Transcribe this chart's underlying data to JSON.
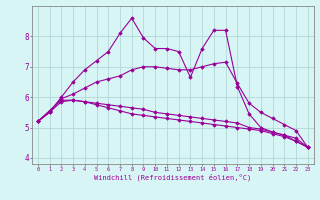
{
  "x": [
    0,
    1,
    2,
    3,
    4,
    5,
    6,
    7,
    8,
    9,
    10,
    11,
    12,
    13,
    14,
    15,
    16,
    17,
    18,
    19,
    20,
    21,
    22,
    23
  ],
  "line1": [
    5.2,
    5.5,
    6.0,
    6.5,
    6.9,
    7.2,
    7.5,
    8.1,
    8.6,
    7.95,
    7.6,
    7.6,
    7.5,
    6.65,
    7.6,
    8.2,
    8.2,
    6.35,
    5.45,
    5.0,
    4.85,
    4.75,
    4.55,
    4.35
  ],
  "line2": [
    5.2,
    5.55,
    5.95,
    6.1,
    6.3,
    6.5,
    6.6,
    6.7,
    6.9,
    7.0,
    7.0,
    6.95,
    6.9,
    6.9,
    7.0,
    7.1,
    7.15,
    6.45,
    5.8,
    5.5,
    5.3,
    5.1,
    4.9,
    4.35
  ],
  "line3": [
    5.2,
    5.55,
    5.9,
    5.9,
    5.85,
    5.8,
    5.75,
    5.7,
    5.65,
    5.6,
    5.5,
    5.45,
    5.4,
    5.35,
    5.3,
    5.25,
    5.2,
    5.15,
    5.0,
    4.95,
    4.85,
    4.75,
    4.65,
    4.35
  ],
  "line4": [
    5.2,
    5.5,
    5.85,
    5.9,
    5.85,
    5.75,
    5.65,
    5.55,
    5.45,
    5.4,
    5.35,
    5.3,
    5.25,
    5.2,
    5.15,
    5.1,
    5.05,
    5.0,
    4.95,
    4.9,
    4.8,
    4.7,
    4.55,
    4.35
  ],
  "color": "#990099",
  "bg_color": "#d8f5f5",
  "grid_color": "#b0d8d8",
  "xlabel": "Windchill (Refroidissement éolien,°C)",
  "ylim": [
    3.8,
    9.0
  ],
  "xlim": [
    -0.5,
    23.5
  ],
  "yticks": [
    4,
    5,
    6,
    7,
    8
  ],
  "xticks": [
    0,
    1,
    2,
    3,
    4,
    5,
    6,
    7,
    8,
    9,
    10,
    11,
    12,
    13,
    14,
    15,
    16,
    17,
    18,
    19,
    20,
    21,
    22,
    23
  ],
  "linewidth": 0.8,
  "markersize": 1.8
}
